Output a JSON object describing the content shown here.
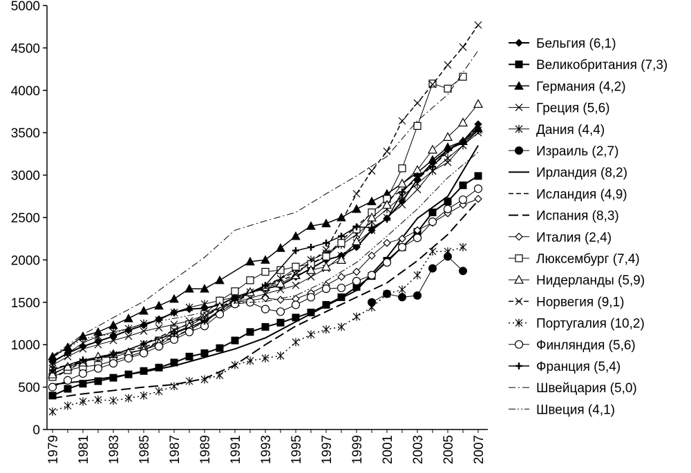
{
  "chart_data": {
    "type": "line",
    "title": "",
    "xlabel": "",
    "ylabel": "",
    "ylim": [
      0,
      5000
    ],
    "xlim": [
      1979,
      2007
    ],
    "yticks": [
      "0",
      "500",
      "1000",
      "1500",
      "2000",
      "2500",
      "3000",
      "3500",
      "4000",
      "4500",
      "5000"
    ],
    "xticks": [
      "1979",
      "1981",
      "1983",
      "1985",
      "1987",
      "1989",
      "1991",
      "1993",
      "1995",
      "1997",
      "1999",
      "2001",
      "2003",
      "2005",
      "2007"
    ],
    "legend_position": "right",
    "grid": false,
    "series": [
      {
        "name": "Бельгия (6,1)",
        "marker": "diamond-filled",
        "dash": "solid",
        "width": 2,
        "x": [
          1979,
          1980,
          1981,
          1982,
          1983,
          1984,
          1985,
          1986,
          1987,
          1988,
          1989,
          1990,
          1991,
          1992,
          1993,
          1994,
          1995,
          1996,
          1997,
          1998,
          1999,
          2000,
          2001,
          2002,
          2003,
          2004,
          2005,
          2006,
          2007
        ],
        "y": [
          800,
          900,
          980,
          1040,
          1100,
          1170,
          1230,
          1300,
          1380,
          1420,
          1430,
          1470,
          1560,
          1620,
          1660,
          1700,
          1800,
          1900,
          2000,
          2050,
          2150,
          2350,
          2490,
          2690,
          2950,
          3150,
          3300,
          3400,
          3600
        ]
      },
      {
        "name": "Великобритания (7,3)",
        "marker": "square-filled",
        "dash": "solid",
        "width": 2,
        "x": [
          1979,
          1980,
          1981,
          1982,
          1983,
          1984,
          1985,
          1986,
          1987,
          1988,
          1989,
          1990,
          1991,
          1992,
          1993,
          1994,
          1995,
          1996,
          1997,
          1998,
          1999,
          2000,
          2001,
          2002,
          2003,
          2004,
          2005,
          2006,
          2007
        ],
        "y": [
          400,
          480,
          540,
          570,
          610,
          650,
          690,
          730,
          790,
          860,
          900,
          960,
          1050,
          1150,
          1210,
          1260,
          1320,
          1380,
          1470,
          1560,
          1680,
          1810,
          1990,
          2150,
          2330,
          2560,
          2690,
          2880,
          2990
        ]
      },
      {
        "name": "Германия (4,2)",
        "marker": "triangle-filled",
        "dash": "solid",
        "width": 1.5,
        "x": [
          1979,
          1980,
          1981,
          1982,
          1983,
          1984,
          1985,
          1986,
          1987,
          1988,
          1989,
          1990,
          1992,
          1993,
          1994,
          1995,
          1996,
          1997,
          1998,
          1999,
          2000,
          2001,
          2002,
          2003,
          2004,
          2005,
          2006,
          2007
        ],
        "y": [
          860,
          970,
          1100,
          1150,
          1230,
          1310,
          1400,
          1460,
          1540,
          1660,
          1660,
          1760,
          1980,
          2000,
          2140,
          2280,
          2400,
          2430,
          2500,
          2600,
          2690,
          2780,
          2900,
          3030,
          3180,
          3330,
          3400,
          3550
        ]
      },
      {
        "name": "Греция (5,6)",
        "marker": "x",
        "dash": "solid",
        "width": 1,
        "x": [
          1979,
          1980,
          1981,
          1982,
          1983,
          1984,
          1985,
          1986,
          1987,
          1988,
          1989,
          1990,
          1991,
          1992,
          1993,
          1994,
          1995,
          1996,
          1997,
          1998,
          1999,
          2000,
          2001,
          2002,
          2003,
          2004,
          2005,
          2006,
          2007
        ],
        "y": [
          760,
          860,
          950,
          1000,
          1050,
          1100,
          1160,
          1200,
          1240,
          1280,
          1350,
          1450,
          1500,
          1550,
          1600,
          1650,
          1700,
          1800,
          1900,
          2050,
          2200,
          2350,
          2500,
          2650,
          2830,
          3050,
          3150,
          3350,
          3500
        ]
      },
      {
        "name": "Дания (4,4)",
        "marker": "star",
        "dash": "solid",
        "width": 1,
        "x": [
          1979,
          1980,
          1981,
          1982,
          1983,
          1984,
          1985,
          1986,
          1987,
          1988,
          1989,
          1990,
          1991,
          1992,
          1993,
          1994,
          1995,
          1996,
          1997,
          1998,
          1999,
          2000,
          2001,
          2002,
          2003,
          2004,
          2005,
          2006,
          2007
        ],
        "y": [
          790,
          900,
          1020,
          1100,
          1150,
          1190,
          1250,
          1290,
          1380,
          1440,
          1480,
          1520,
          1560,
          1620,
          1680,
          1780,
          1900,
          2000,
          2080,
          2180,
          2300,
          2450,
          2600,
          2750,
          2900,
          3050,
          3200,
          3350,
          3530
        ]
      },
      {
        "name": "Израиль (2,7)",
        "marker": "circle-filled",
        "dash": "solid",
        "width": 1,
        "x": [
          2000,
          2001,
          2002,
          2003,
          2004,
          2005,
          2006
        ],
        "y": [
          1500,
          1600,
          1560,
          1580,
          1900,
          2040,
          1870
        ]
      },
      {
        "name": "Ирландия (8,2)",
        "marker": "none",
        "dash": "solid",
        "width": 2,
        "x": [
          1979,
          1981,
          1983,
          1985,
          1987,
          1989,
          1991,
          1993,
          1995,
          1997,
          1999,
          2001,
          2003,
          2005,
          2007
        ],
        "y": [
          530,
          570,
          620,
          680,
          750,
          850,
          950,
          1080,
          1270,
          1460,
          1640,
          2030,
          2490,
          2750,
          3350
        ]
      },
      {
        "name": "Исландия (4,9)",
        "marker": "none",
        "dash": "dash",
        "width": 1.5,
        "x": [
          1979,
          1981,
          1983,
          1985,
          1987,
          1989,
          1991,
          1993,
          1995,
          1997,
          1999,
          2001,
          2003,
          2005,
          2007
        ],
        "y": [
          600,
          800,
          900,
          970,
          1090,
          1270,
          1500,
          1700,
          1860,
          2050,
          2400,
          2700,
          2950,
          3270,
          3560
        ]
      },
      {
        "name": "Испания (8,3)",
        "marker": "none",
        "dash": "longdash",
        "width": 2,
        "x": [
          1979,
          1981,
          1983,
          1985,
          1987,
          1989,
          1991,
          1993,
          1995,
          1997,
          1999,
          2001,
          2003,
          2005,
          2007
        ],
        "y": [
          370,
          420,
          460,
          500,
          530,
          600,
          760,
          1000,
          1220,
          1390,
          1560,
          1730,
          1990,
          2300,
          2700
        ]
      },
      {
        "name": "Италия (2,4)",
        "marker": "diamond-open",
        "dash": "solid",
        "width": 1,
        "x": [
          1979,
          1980,
          1981,
          1982,
          1983,
          1984,
          1985,
          1986,
          1987,
          1988,
          1989,
          1990,
          1991,
          1992,
          1993,
          1994,
          1995,
          1996,
          1997,
          1998,
          1999,
          2000,
          2001,
          2002,
          2003,
          2004,
          2005,
          2006,
          2007
        ],
        "y": [
          660,
          740,
          800,
          840,
          860,
          900,
          940,
          1000,
          1090,
          1170,
          1280,
          1380,
          1500,
          1520,
          1550,
          1530,
          1540,
          1610,
          1700,
          1800,
          1860,
          2050,
          2200,
          2250,
          2350,
          2440,
          2550,
          2650,
          2720
        ]
      },
      {
        "name": "Люксембург (7,4)",
        "marker": "square-open",
        "dash": "solid",
        "width": 1,
        "x": [
          1979,
          1980,
          1981,
          1982,
          1983,
          1984,
          1985,
          1986,
          1987,
          1988,
          1989,
          1990,
          1991,
          1992,
          1993,
          1994,
          1995,
          1996,
          1997,
          1998,
          1999,
          2000,
          2001,
          2002,
          2003,
          2004,
          2005,
          2006
        ],
        "y": [
          620,
          700,
          740,
          760,
          810,
          860,
          920,
          1050,
          1180,
          1240,
          1360,
          1520,
          1630,
          1760,
          1860,
          1880,
          1920,
          1950,
          2040,
          2200,
          2360,
          2560,
          2720,
          3080,
          3580,
          4080,
          4020,
          4160
        ]
      },
      {
        "name": "Нидерланды (5,9)",
        "marker": "triangle-open",
        "dash": "solid",
        "width": 1,
        "x": [
          1979,
          1980,
          1981,
          1982,
          1983,
          1984,
          1985,
          1986,
          1987,
          1988,
          1989,
          1990,
          1991,
          1992,
          1993,
          1994,
          1995,
          1996,
          1997,
          1998,
          1999,
          2000,
          2001,
          2002,
          2003,
          2004,
          2005,
          2006,
          2007
        ],
        "y": [
          650,
          740,
          790,
          860,
          890,
          910,
          940,
          1020,
          1140,
          1220,
          1330,
          1450,
          1500,
          1620,
          1680,
          1720,
          1820,
          1880,
          1920,
          2000,
          2220,
          2500,
          2650,
          2900,
          3060,
          3300,
          3450,
          3620,
          3840
        ]
      },
      {
        "name": "Норвегия (9,1)",
        "marker": "x",
        "dash": "dash",
        "width": 1.5,
        "x": [
          1979,
          1981,
          1983,
          1985,
          1987,
          1989,
          1991,
          1993,
          1995,
          1997,
          1999,
          2000,
          2001,
          2002,
          2003,
          2004,
          2005,
          2006,
          2007
        ],
        "y": [
          720,
          800,
          880,
          1010,
          1170,
          1330,
          1540,
          1680,
          1830,
          2120,
          2780,
          3050,
          3280,
          3640,
          3850,
          4070,
          4300,
          4510,
          4770
        ]
      },
      {
        "name": "Португалия (10,2)",
        "marker": "star",
        "dash": "dot",
        "width": 1.5,
        "x": [
          1979,
          1980,
          1981,
          1982,
          1983,
          1984,
          1985,
          1986,
          1987,
          1988,
          1989,
          1990,
          1991,
          1992,
          1993,
          1994,
          1995,
          1996,
          1997,
          1998,
          1999,
          2000,
          2001,
          2002,
          2003,
          2004,
          2005,
          2006
        ],
        "y": [
          210,
          280,
          330,
          350,
          340,
          370,
          400,
          450,
          510,
          570,
          590,
          640,
          760,
          810,
          840,
          870,
          1030,
          1120,
          1180,
          1210,
          1330,
          1440,
          1600,
          1650,
          1820,
          2100,
          2100,
          2150
        ]
      },
      {
        "name": "Финляндия (5,6)",
        "marker": "circle-open",
        "dash": "solid",
        "width": 1,
        "x": [
          1979,
          1980,
          1981,
          1982,
          1983,
          1984,
          1985,
          1986,
          1987,
          1988,
          1989,
          1990,
          1991,
          1992,
          1993,
          1994,
          1995,
          1996,
          1997,
          1998,
          1999,
          2000,
          2001,
          2002,
          2003,
          2004,
          2005,
          2006,
          2007
        ],
        "y": [
          500,
          580,
          660,
          720,
          780,
          840,
          900,
          980,
          1060,
          1150,
          1220,
          1360,
          1480,
          1500,
          1420,
          1390,
          1470,
          1560,
          1660,
          1670,
          1750,
          1820,
          1970,
          2150,
          2260,
          2450,
          2600,
          2710,
          2840
        ]
      },
      {
        "name": "Франция (5,4)",
        "marker": "plus",
        "dash": "solid",
        "width": 1.5,
        "x": [
          1979,
          1981,
          1983,
          1985,
          1987,
          1989,
          1991,
          1993,
          1995,
          1996,
          1997,
          1998,
          1999,
          2000,
          2001,
          2002,
          2003,
          2004,
          2005,
          2006,
          2007
        ],
        "y": [
          700,
          820,
          880,
          1010,
          1130,
          1280,
          1530,
          1700,
          2110,
          2150,
          2200,
          2280,
          2390,
          2380,
          2480,
          2800,
          2990,
          3100,
          3300,
          3380,
          3530
        ]
      },
      {
        "name": "Швейцария (5,0)",
        "marker": "none",
        "dash": "dashdot",
        "width": 1,
        "x": [
          1979,
          1981,
          1983,
          1985,
          1987,
          1989,
          1991,
          1993,
          1995,
          1997,
          1999,
          2001,
          2003,
          2005,
          2007
        ],
        "y": [
          870,
          1120,
          1320,
          1510,
          1770,
          2030,
          2350,
          2460,
          2560,
          2780,
          2990,
          3220,
          3640,
          3950,
          4470
        ]
      },
      {
        "name": "Швеция (4,1)",
        "marker": "none",
        "dash": "dashdotdot",
        "width": 1,
        "x": [
          1979,
          1981,
          1983,
          1985,
          1987,
          1989,
          1991,
          1993,
          1995,
          1997,
          1999,
          2001,
          2003,
          2005,
          2007
        ],
        "y": [
          850,
          1070,
          1130,
          1250,
          1310,
          1380,
          1490,
          1510,
          1580,
          1750,
          1970,
          2280,
          2600,
          2970,
          3270
        ]
      }
    ]
  }
}
